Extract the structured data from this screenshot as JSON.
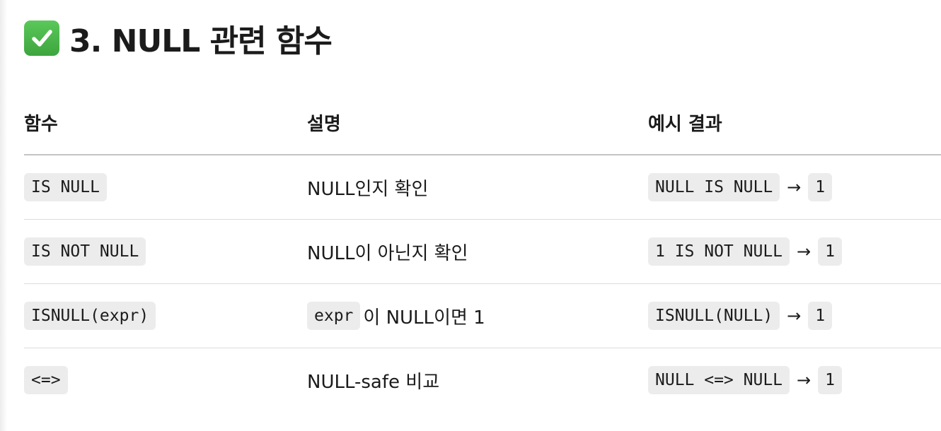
{
  "heading": {
    "icon": "check-mark-button-icon",
    "title": "3. NULL 관련 함수"
  },
  "table": {
    "headers": [
      "함수",
      "설명",
      "예시 결과"
    ],
    "rows": [
      {
        "function": "IS NULL",
        "description": "NULL인지 확인",
        "example_expr": "NULL IS NULL",
        "arrow": "→",
        "example_result": "1"
      },
      {
        "function": "IS NOT NULL",
        "description": "NULL이 아닌지 확인",
        "example_expr": "1 IS NOT NULL",
        "arrow": "→",
        "example_result": "1"
      },
      {
        "function": "ISNULL(expr)",
        "description_code": "expr",
        "description": "이 NULL이면 1",
        "example_expr": "ISNULL(NULL)",
        "arrow": "→",
        "example_result": "1"
      },
      {
        "function": "<=>",
        "description": "NULL-safe 비교",
        "example_expr": "NULL <=> NULL",
        "arrow": "→",
        "example_result": "1"
      }
    ]
  },
  "colors": {
    "check_green": "#43b043",
    "code_background": "#ececec",
    "text": "#1b1b1b"
  }
}
